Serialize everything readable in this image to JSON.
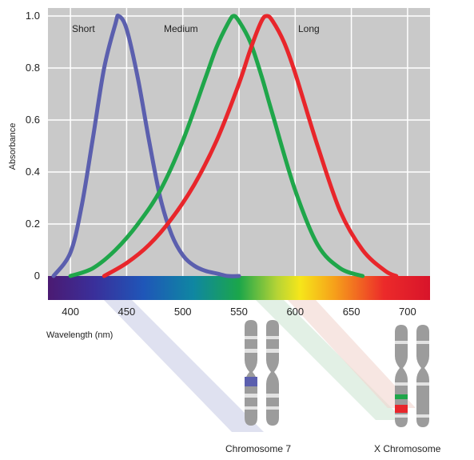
{
  "chart_data": {
    "type": "line",
    "xlabel": "Wavelength (nm)",
    "ylabel": "Absorbance",
    "xlim": [
      380,
      720
    ],
    "ylim": [
      0,
      1.0
    ],
    "x_ticks": [
      "400",
      "450",
      "500",
      "550",
      "600",
      "650",
      "700"
    ],
    "y_ticks": [
      "0",
      "0.2",
      "0.4",
      "0.6",
      "0.8",
      "1.0"
    ],
    "grid": true,
    "series": [
      {
        "name": "Short",
        "color": "#5b5fae",
        "x": [
          385,
          400,
          410,
          420,
          430,
          440,
          443,
          450,
          460,
          470,
          480,
          490,
          500,
          510,
          520,
          530,
          540,
          550
        ],
        "y": [
          0.0,
          0.09,
          0.27,
          0.53,
          0.8,
          0.97,
          1.0,
          0.95,
          0.76,
          0.52,
          0.3,
          0.16,
          0.08,
          0.04,
          0.02,
          0.01,
          0.0,
          0.0
        ]
      },
      {
        "name": "Medium",
        "color": "#1fa64a",
        "x": [
          400,
          420,
          440,
          460,
          480,
          500,
          520,
          530,
          540,
          545,
          550,
          560,
          570,
          580,
          600,
          620,
          640,
          660
        ],
        "y": [
          0.0,
          0.03,
          0.1,
          0.2,
          0.33,
          0.52,
          0.76,
          0.88,
          0.97,
          1.0,
          0.98,
          0.9,
          0.77,
          0.62,
          0.33,
          0.12,
          0.03,
          0.0
        ]
      },
      {
        "name": "Long",
        "color": "#e8262b",
        "x": [
          430,
          450,
          470,
          490,
          510,
          530,
          550,
          560,
          570,
          575,
          580,
          590,
          600,
          620,
          640,
          660,
          680,
          690
        ],
        "y": [
          0.0,
          0.05,
          0.12,
          0.22,
          0.35,
          0.52,
          0.74,
          0.87,
          0.98,
          1.0,
          0.98,
          0.9,
          0.78,
          0.5,
          0.25,
          0.1,
          0.02,
          0.0
        ]
      }
    ],
    "spectrum_bar": true
  },
  "chromosomes": [
    {
      "label": "Chromosome 7",
      "genes": [
        "Short"
      ],
      "gene_colors": [
        "#5b5fae"
      ]
    },
    {
      "label": "X Chromosome",
      "genes": [
        "Medium",
        "Long"
      ],
      "gene_colors": [
        "#1fa64a",
        "#e8262b"
      ]
    }
  ]
}
